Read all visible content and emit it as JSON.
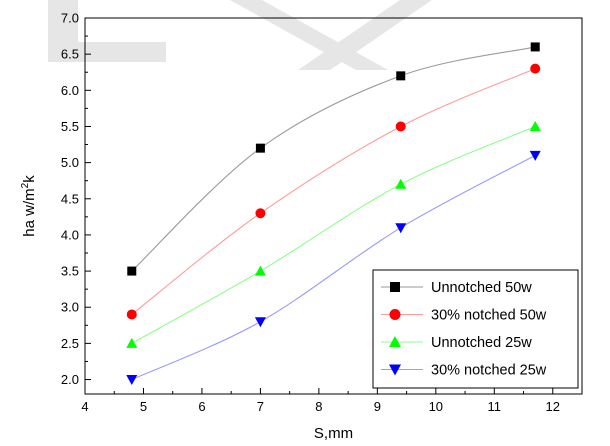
{
  "chart_data": {
    "type": "line",
    "xlabel": "S,mm",
    "ylabel_main": "ha w/m",
    "ylabel_sup": "2",
    "ylabel_tail": "k",
    "xlim": [
      4,
      12.5
    ],
    "ylim": [
      1.8,
      7.0
    ],
    "xticks": [
      4,
      5,
      6,
      7,
      8,
      9,
      10,
      11,
      12
    ],
    "yticks": [
      2.0,
      2.5,
      3.0,
      3.5,
      4.0,
      4.5,
      5.0,
      5.5,
      6.0,
      6.5,
      7.0
    ],
    "x": [
      4.8,
      7.0,
      9.4,
      11.7
    ],
    "grid": false,
    "legend_position": "bottom-right",
    "series": [
      {
        "name": "Unnotched 50w",
        "values": [
          3.5,
          5.2,
          6.2,
          6.6
        ],
        "marker": "square",
        "marker_color": "#000000",
        "line_color": "#9a9a9a"
      },
      {
        "name": "30% notched 50w",
        "values": [
          2.9,
          4.3,
          5.5,
          6.3
        ],
        "marker": "circle",
        "marker_color": "#ff0000",
        "line_color": "#ff9a9a"
      },
      {
        "name": "Unnotched 25w",
        "values": [
          2.5,
          3.5,
          4.7,
          5.5
        ],
        "marker": "triangle-up",
        "marker_color": "#00ff00",
        "line_color": "#8aff8a"
      },
      {
        "name": "30% notched 25w",
        "values": [
          2.0,
          2.8,
          4.1,
          5.1
        ],
        "marker": "triangle-down",
        "marker_color": "#0000ff",
        "line_color": "#9a9aff"
      }
    ]
  }
}
